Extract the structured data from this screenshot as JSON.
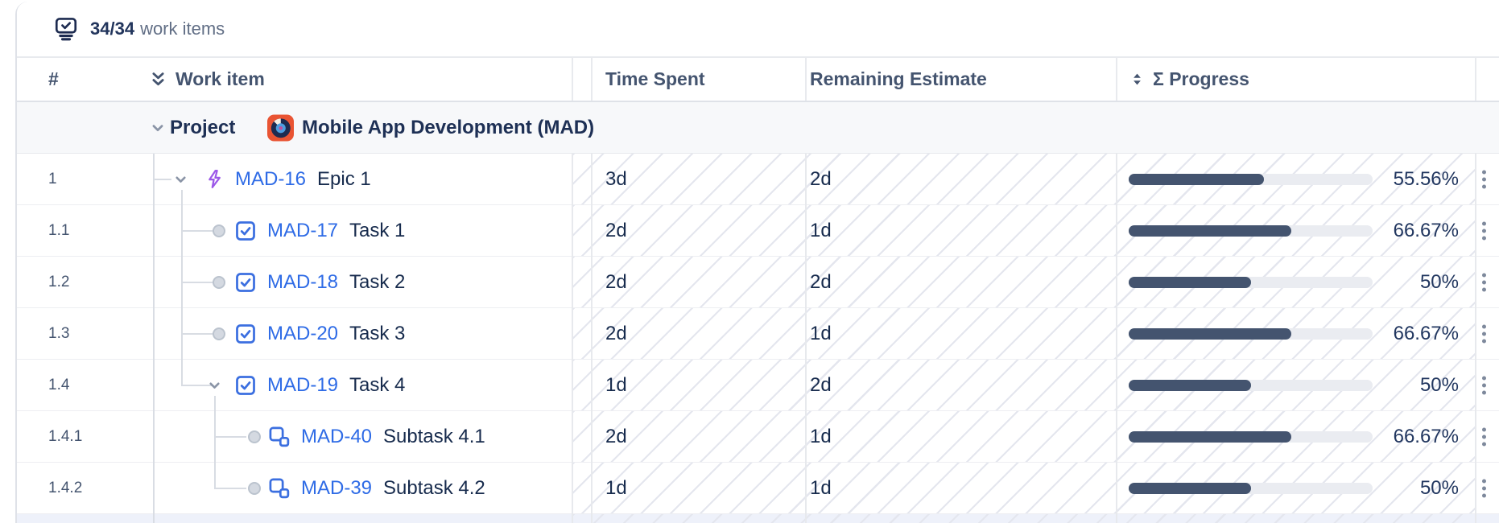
{
  "topbar": {
    "count": "34/34",
    "label": "work items"
  },
  "header": {
    "number_sign": "#",
    "work_item": "Work item",
    "time_spent": "Time Spent",
    "remaining_estimate": "Remaining Estimate",
    "progress": "Σ Progress"
  },
  "project": {
    "type_label": "Project",
    "name": "Mobile App Development (MAD)"
  },
  "rows": [
    {
      "num": "1",
      "key": "MAD-16",
      "title": "Epic 1",
      "type": "epic",
      "time_spent": "3d",
      "remaining": "2d",
      "progress_pct": 55.56,
      "progress_label": "55.56%",
      "depth": 1,
      "has_children": true,
      "is_last": false
    },
    {
      "num": "1.1",
      "key": "MAD-17",
      "title": "Task 1",
      "type": "task",
      "time_spent": "2d",
      "remaining": "1d",
      "progress_pct": 66.67,
      "progress_label": "66.67%",
      "depth": 2,
      "has_children": false,
      "is_last": false
    },
    {
      "num": "1.2",
      "key": "MAD-18",
      "title": "Task 2",
      "type": "task",
      "time_spent": "2d",
      "remaining": "2d",
      "progress_pct": 50,
      "progress_label": "50%",
      "depth": 2,
      "has_children": false,
      "is_last": false
    },
    {
      "num": "1.3",
      "key": "MAD-20",
      "title": "Task 3",
      "type": "task",
      "time_spent": "2d",
      "remaining": "1d",
      "progress_pct": 66.67,
      "progress_label": "66.67%",
      "depth": 2,
      "has_children": false,
      "is_last": false
    },
    {
      "num": "1.4",
      "key": "MAD-19",
      "title": "Task 4",
      "type": "task",
      "time_spent": "1d",
      "remaining": "2d",
      "progress_pct": 50,
      "progress_label": "50%",
      "depth": 2,
      "has_children": true,
      "is_last": true
    },
    {
      "num": "1.4.1",
      "key": "MAD-40",
      "title": "Subtask 4.1",
      "type": "subtask",
      "time_spent": "2d",
      "remaining": "1d",
      "progress_pct": 66.67,
      "progress_label": "66.67%",
      "depth": 3,
      "has_children": false,
      "is_last": false
    },
    {
      "num": "1.4.2",
      "key": "MAD-39",
      "title": "Subtask 4.2",
      "type": "subtask",
      "time_spent": "1d",
      "remaining": "1d",
      "progress_pct": 50,
      "progress_label": "50%",
      "depth": 3,
      "has_children": false,
      "is_last": true
    }
  ],
  "icons": {
    "topbar": "monitor-check-icon",
    "work_item_sort": "double-chevron-down-icon",
    "progress_sort": "sort-arrows-icon",
    "expand": "chevron-down-icon",
    "leaf": "circle-bullet-icon",
    "epic": "epic-bolt-icon",
    "task": "task-checkbox-icon",
    "subtask": "subtask-squares-icon",
    "project_avatar": "project-avatar-disc-icon",
    "row_menu": "kebab-menu-icon"
  },
  "colors": {
    "link_blue": "#2E6BE6",
    "epic_purple": "#9C59E8",
    "task_blue": "#3B6FE0",
    "progress_bar": "#44546F",
    "progress_track": "#EAECF1",
    "project_row_bg": "#F7F8FA",
    "avatar_orange": "#E95433",
    "hatch_line": "#E4E6EE"
  }
}
